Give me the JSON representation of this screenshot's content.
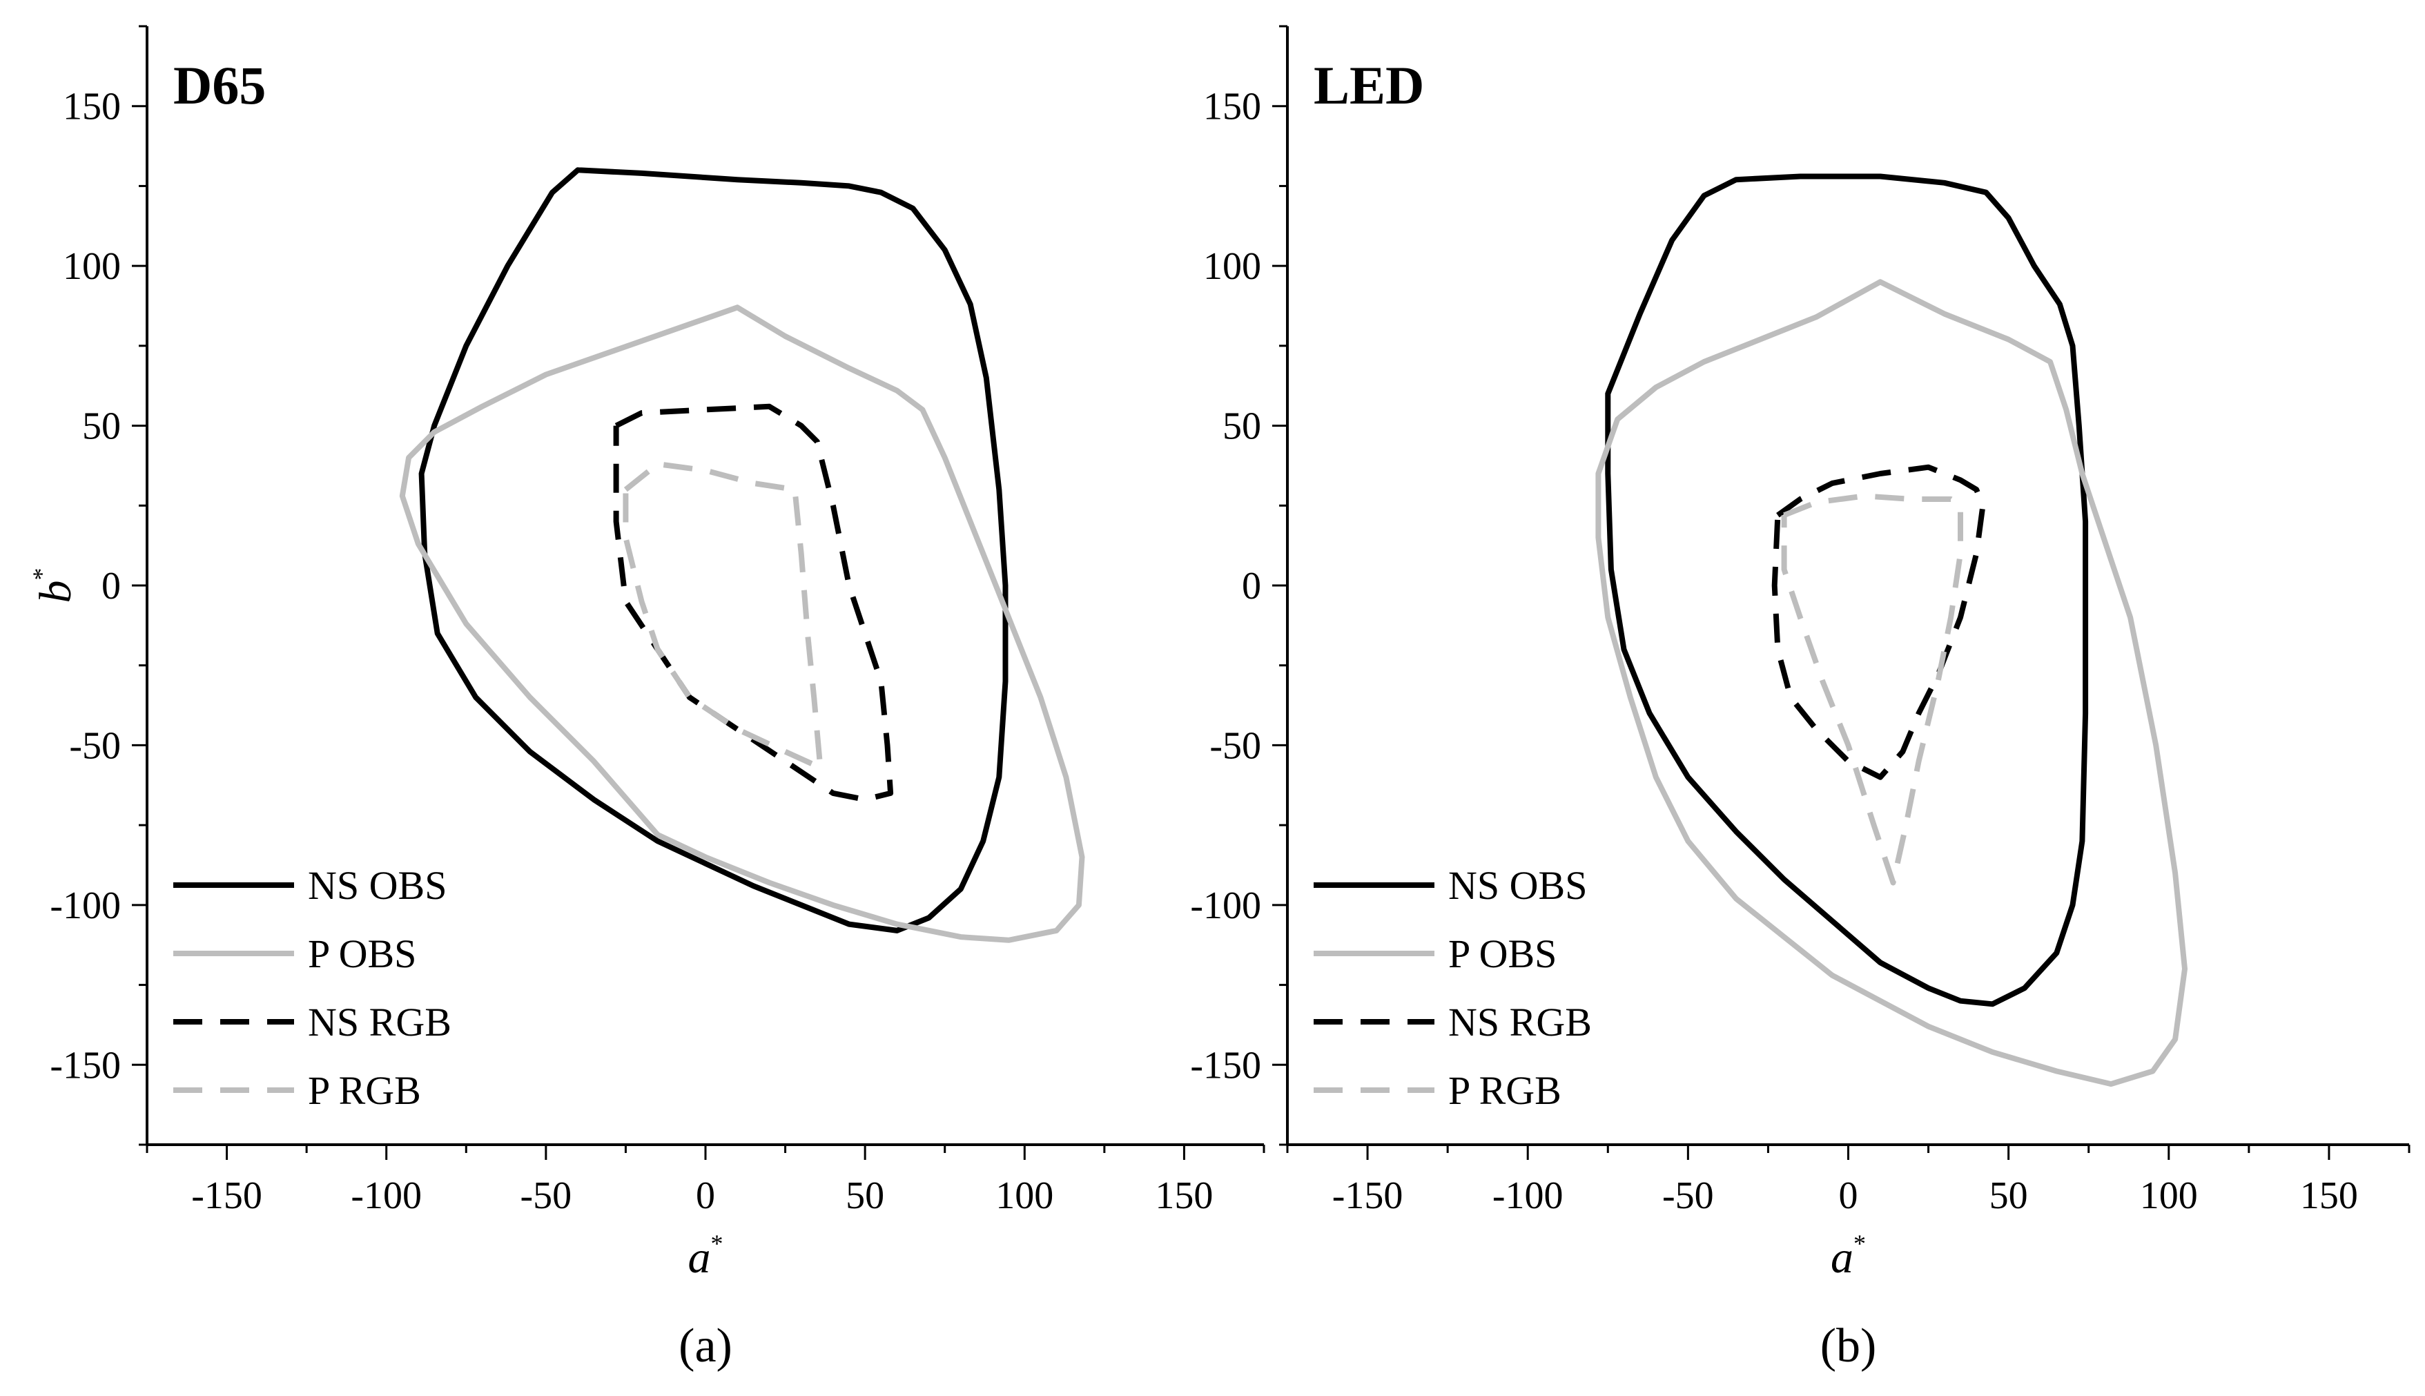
{
  "chart_data": [
    {
      "type": "line",
      "title": "D65",
      "caption": "(a)",
      "xlabel": "a",
      "ylabel": "b",
      "label_superscript": "*",
      "xlim": [
        -175,
        175
      ],
      "ylim": [
        -175,
        175
      ],
      "xticks": [
        -150,
        -100,
        -50,
        0,
        50,
        100,
        150
      ],
      "yticks": [
        -150,
        -100,
        -50,
        0,
        50,
        100,
        150
      ],
      "legend_position": "bottom-left",
      "series": [
        {
          "name": "NS OBS",
          "color": "#000000",
          "dash": "solid",
          "points": [
            [
              -40,
              130
            ],
            [
              -20,
              129
            ],
            [
              10,
              127
            ],
            [
              30,
              126
            ],
            [
              45,
              125
            ],
            [
              55,
              123
            ],
            [
              65,
              118
            ],
            [
              75,
              105
            ],
            [
              83,
              88
            ],
            [
              88,
              65
            ],
            [
              92,
              30
            ],
            [
              94,
              0
            ],
            [
              94,
              -30
            ],
            [
              92,
              -60
            ],
            [
              87,
              -80
            ],
            [
              80,
              -95
            ],
            [
              70,
              -104
            ],
            [
              60,
              -108
            ],
            [
              45,
              -106
            ],
            [
              30,
              -100
            ],
            [
              15,
              -94
            ],
            [
              0,
              -87
            ],
            [
              -15,
              -80
            ],
            [
              -35,
              -67
            ],
            [
              -55,
              -52
            ],
            [
              -72,
              -35
            ],
            [
              -84,
              -15
            ],
            [
              -88,
              10
            ],
            [
              -89,
              35
            ],
            [
              -85,
              50
            ],
            [
              -75,
              75
            ],
            [
              -62,
              100
            ],
            [
              -48,
              123
            ],
            [
              -40,
              130
            ]
          ]
        },
        {
          "name": "P OBS",
          "color": "#bdbdbd",
          "dash": "solid",
          "points": [
            [
              10,
              87
            ],
            [
              25,
              78
            ],
            [
              45,
              68
            ],
            [
              60,
              61
            ],
            [
              68,
              55
            ],
            [
              75,
              40
            ],
            [
              85,
              15
            ],
            [
              95,
              -10
            ],
            [
              105,
              -35
            ],
            [
              113,
              -60
            ],
            [
              118,
              -85
            ],
            [
              117,
              -100
            ],
            [
              110,
              -108
            ],
            [
              95,
              -111
            ],
            [
              80,
              -110
            ],
            [
              60,
              -106
            ],
            [
              40,
              -100
            ],
            [
              20,
              -93
            ],
            [
              0,
              -85
            ],
            [
              -15,
              -78
            ],
            [
              -35,
              -55
            ],
            [
              -55,
              -35
            ],
            [
              -75,
              -12
            ],
            [
              -90,
              13
            ],
            [
              -95,
              28
            ],
            [
              -93,
              40
            ],
            [
              -85,
              48
            ],
            [
              -70,
              56
            ],
            [
              -50,
              66
            ],
            [
              -30,
              73
            ],
            [
              -10,
              80
            ],
            [
              10,
              87
            ]
          ]
        },
        {
          "name": "NS RGB",
          "color": "#000000",
          "dash": "dashed",
          "points": [
            [
              -28,
              50
            ],
            [
              -20,
              54
            ],
            [
              0,
              55
            ],
            [
              20,
              56
            ],
            [
              30,
              50
            ],
            [
              35,
              45
            ],
            [
              40,
              25
            ],
            [
              45,
              0
            ],
            [
              50,
              -15
            ],
            [
              55,
              -30
            ],
            [
              57,
              -50
            ],
            [
              58,
              -65
            ],
            [
              50,
              -67
            ],
            [
              40,
              -65
            ],
            [
              25,
              -55
            ],
            [
              10,
              -45
            ],
            [
              -5,
              -35
            ],
            [
              -15,
              -20
            ],
            [
              -25,
              -5
            ],
            [
              -28,
              20
            ],
            [
              -28,
              35
            ],
            [
              -28,
              50
            ]
          ]
        },
        {
          "name": "P RGB",
          "color": "#bdbdbd",
          "dash": "dashed",
          "points": [
            [
              -25,
              30
            ],
            [
              -15,
              38
            ],
            [
              0,
              36
            ],
            [
              15,
              32
            ],
            [
              28,
              30
            ],
            [
              30,
              10
            ],
            [
              32,
              -15
            ],
            [
              34,
              -35
            ],
            [
              36,
              -57
            ],
            [
              25,
              -52
            ],
            [
              10,
              -45
            ],
            [
              -5,
              -35
            ],
            [
              -15,
              -20
            ],
            [
              -20,
              -5
            ],
            [
              -25,
              15
            ],
            [
              -25,
              30
            ]
          ]
        }
      ]
    },
    {
      "type": "line",
      "title": "LED",
      "caption": "(b)",
      "xlabel": "a",
      "ylabel": "",
      "label_superscript": "*",
      "xlim": [
        -175,
        175
      ],
      "ylim": [
        -175,
        175
      ],
      "xticks": [
        -150,
        -100,
        -50,
        0,
        50,
        100,
        150
      ],
      "yticks": [
        -150,
        -100,
        -50,
        0,
        50,
        100,
        150
      ],
      "legend_position": "bottom-left",
      "series": [
        {
          "name": "NS OBS",
          "color": "#000000",
          "dash": "solid",
          "points": [
            [
              -75,
              60
            ],
            [
              -65,
              85
            ],
            [
              -55,
              108
            ],
            [
              -45,
              122
            ],
            [
              -35,
              127
            ],
            [
              -15,
              128
            ],
            [
              10,
              128
            ],
            [
              30,
              126
            ],
            [
              43,
              123
            ],
            [
              50,
              115
            ],
            [
              58,
              100
            ],
            [
              66,
              88
            ],
            [
              70,
              75
            ],
            [
              72,
              50
            ],
            [
              74,
              20
            ],
            [
              74,
              0
            ],
            [
              74,
              -40
            ],
            [
              73,
              -80
            ],
            [
              70,
              -100
            ],
            [
              65,
              -115
            ],
            [
              55,
              -126
            ],
            [
              45,
              -131
            ],
            [
              35,
              -130
            ],
            [
              25,
              -126
            ],
            [
              10,
              -118
            ],
            [
              -5,
              -105
            ],
            [
              -20,
              -92
            ],
            [
              -35,
              -77
            ],
            [
              -50,
              -60
            ],
            [
              -62,
              -40
            ],
            [
              -70,
              -20
            ],
            [
              -74,
              5
            ],
            [
              -75,
              35
            ],
            [
              -75,
              60
            ]
          ]
        },
        {
          "name": "P OBS",
          "color": "#bdbdbd",
          "dash": "solid",
          "points": [
            [
              10,
              95
            ],
            [
              30,
              85
            ],
            [
              50,
              77
            ],
            [
              63,
              70
            ],
            [
              68,
              55
            ],
            [
              73,
              35
            ],
            [
              78,
              20
            ],
            [
              88,
              -10
            ],
            [
              96,
              -50
            ],
            [
              102,
              -90
            ],
            [
              105,
              -120
            ],
            [
              102,
              -142
            ],
            [
              95,
              -152
            ],
            [
              82,
              -156
            ],
            [
              65,
              -152
            ],
            [
              45,
              -146
            ],
            [
              25,
              -138
            ],
            [
              10,
              -130
            ],
            [
              -5,
              -122
            ],
            [
              -20,
              -110
            ],
            [
              -35,
              -98
            ],
            [
              -50,
              -80
            ],
            [
              -60,
              -60
            ],
            [
              -68,
              -35
            ],
            [
              -75,
              -10
            ],
            [
              -78,
              15
            ],
            [
              -78,
              35
            ],
            [
              -72,
              52
            ],
            [
              -60,
              62
            ],
            [
              -45,
              70
            ],
            [
              -25,
              78
            ],
            [
              -10,
              84
            ],
            [
              10,
              95
            ]
          ]
        },
        {
          "name": "NS RGB",
          "color": "#000000",
          "dash": "dashed",
          "points": [
            [
              -22,
              22
            ],
            [
              -15,
              27
            ],
            [
              -5,
              32
            ],
            [
              10,
              35
            ],
            [
              25,
              37
            ],
            [
              35,
              33
            ],
            [
              40,
              30
            ],
            [
              42,
              25
            ],
            [
              40,
              10
            ],
            [
              35,
              -10
            ],
            [
              28,
              -28
            ],
            [
              22,
              -40
            ],
            [
              17,
              -52
            ],
            [
              10,
              -60
            ],
            [
              0,
              -55
            ],
            [
              -10,
              -45
            ],
            [
              -18,
              -35
            ],
            [
              -22,
              -20
            ],
            [
              -23,
              0
            ],
            [
              -22,
              22
            ]
          ]
        },
        {
          "name": "P RGB",
          "color": "#bdbdbd",
          "dash": "dashed",
          "points": [
            [
              -20,
              22
            ],
            [
              -10,
              26
            ],
            [
              5,
              28
            ],
            [
              20,
              27
            ],
            [
              32,
              27
            ],
            [
              35,
              25
            ],
            [
              35,
              10
            ],
            [
              32,
              -10
            ],
            [
              28,
              -30
            ],
            [
              22,
              -55
            ],
            [
              18,
              -75
            ],
            [
              14,
              -93
            ],
            [
              8,
              -75
            ],
            [
              0,
              -50
            ],
            [
              -8,
              -30
            ],
            [
              -15,
              -10
            ],
            [
              -20,
              5
            ],
            [
              -20,
              22
            ]
          ]
        }
      ]
    }
  ]
}
